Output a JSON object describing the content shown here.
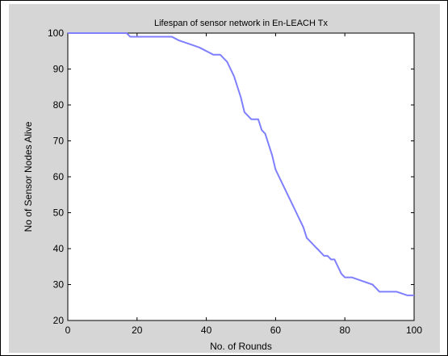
{
  "chart_data": {
    "type": "line",
    "title": "Lifespan of sensor network in En-LEACH Tx",
    "xlabel": "No. of Rounds",
    "ylabel": "No of Sensor Nodes Alive",
    "xlim": [
      0,
      100
    ],
    "ylim": [
      20,
      100
    ],
    "xticks": [
      0,
      20,
      40,
      60,
      80,
      100
    ],
    "yticks": [
      20,
      30,
      40,
      50,
      60,
      70,
      80,
      90,
      100
    ],
    "grid": false,
    "line_color": "#7f7fff",
    "series": [
      {
        "x": [
          0,
          10,
          17,
          18,
          20,
          25,
          30,
          32,
          35,
          38,
          40,
          42,
          44,
          45,
          46,
          47,
          48,
          49,
          50,
          51,
          52,
          53,
          54,
          55,
          56,
          57,
          58,
          59,
          60,
          61,
          62,
          63,
          64,
          65,
          66,
          67,
          68,
          69,
          70,
          71,
          72,
          73,
          74,
          75,
          76,
          77,
          78,
          79,
          80,
          82,
          85,
          88,
          89,
          90,
          95,
          98,
          100
        ],
        "y": [
          100,
          100,
          100,
          99,
          99,
          99,
          99,
          98,
          97,
          96,
          95,
          94,
          94,
          93,
          92,
          90,
          88,
          85,
          82,
          78,
          77,
          76,
          76,
          76,
          73,
          72,
          69,
          66,
          62,
          60,
          58,
          56,
          54,
          52,
          50,
          48,
          46,
          43,
          42,
          41,
          40,
          39,
          38,
          38,
          37,
          37,
          35,
          33,
          32,
          32,
          31,
          30,
          29,
          28,
          28,
          27,
          27
        ]
      }
    ]
  }
}
